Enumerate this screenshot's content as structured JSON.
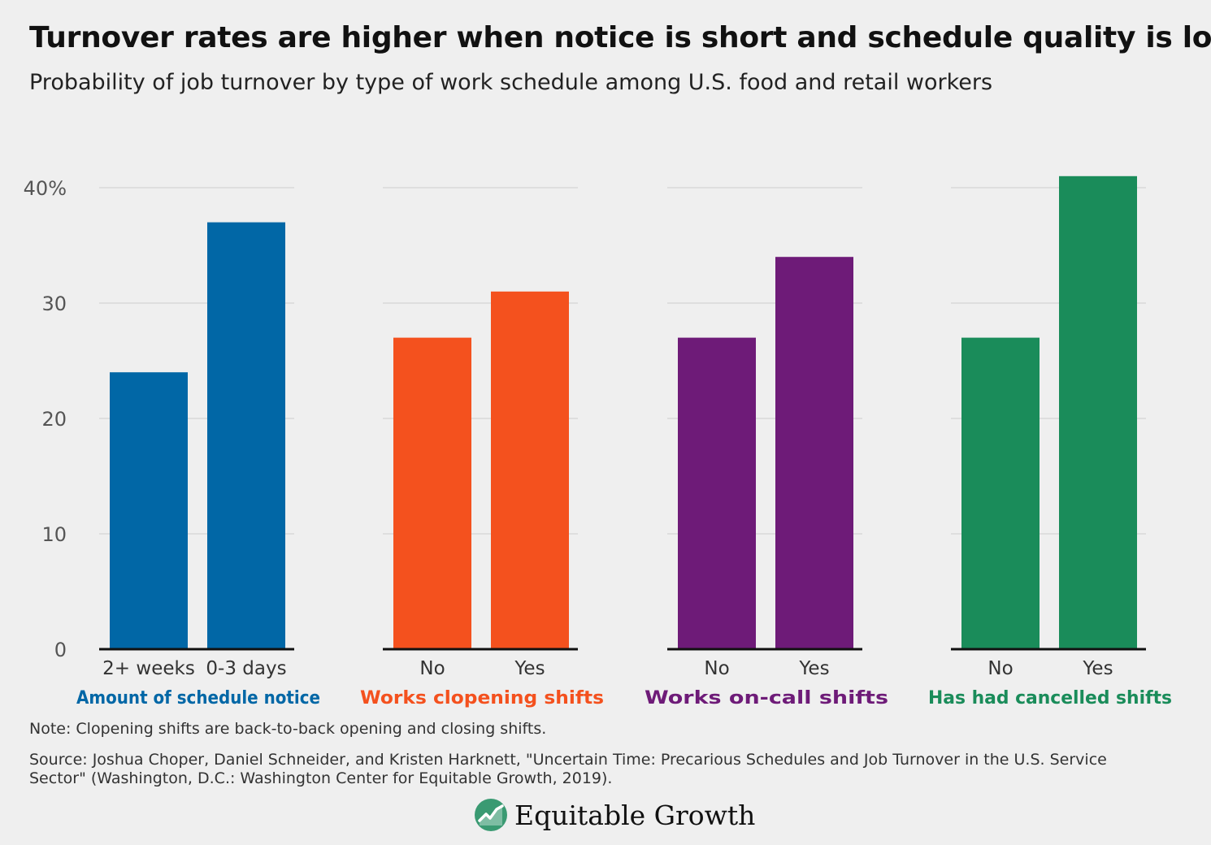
{
  "title": "Turnover rates are higher when notice is short and schedule quality is low",
  "subtitle": "Probability of job turnover by type of work schedule among U.S. food and retail workers",
  "note": "Note: Clopening shifts are back-to-back opening and closing shifts.",
  "source": "Source: Joshua Choper, Daniel Schneider, and Kristen Harknett, \"Uncertain Time: Precarious Schedules and Job Turnover in the U.S. Service Sector\" (Washington, D.C.: Washington Center for Equitable Growth, 2019).",
  "logo": {
    "text": "Equitable Growth",
    "icon": "growth-chart-logo-icon"
  },
  "chart_data": {
    "type": "bar",
    "ylim": [
      0,
      40
    ],
    "yticks": [
      {
        "value": 0,
        "label": "0"
      },
      {
        "value": 10,
        "label": "10"
      },
      {
        "value": 20,
        "label": "20"
      },
      {
        "value": 30,
        "label": "30"
      },
      {
        "value": 40,
        "label": "40%"
      }
    ],
    "grid": true,
    "panels": [
      {
        "label": "Amount of schedule notice",
        "color": "#0167a6",
        "categories": [
          "2+ weeks",
          "0-3 days"
        ],
        "values": [
          24,
          37
        ]
      },
      {
        "label": "Works clopening shifts",
        "color": "#f4511e",
        "categories": [
          "No",
          "Yes"
        ],
        "values": [
          27,
          31
        ]
      },
      {
        "label": "Works on-call shifts",
        "color": "#6e1b78",
        "categories": [
          "No",
          "Yes"
        ],
        "values": [
          27,
          34
        ]
      },
      {
        "label": "Has had cancelled shifts",
        "color": "#1a8c5a",
        "categories": [
          "No",
          "Yes"
        ],
        "values": [
          27,
          41
        ]
      }
    ]
  }
}
